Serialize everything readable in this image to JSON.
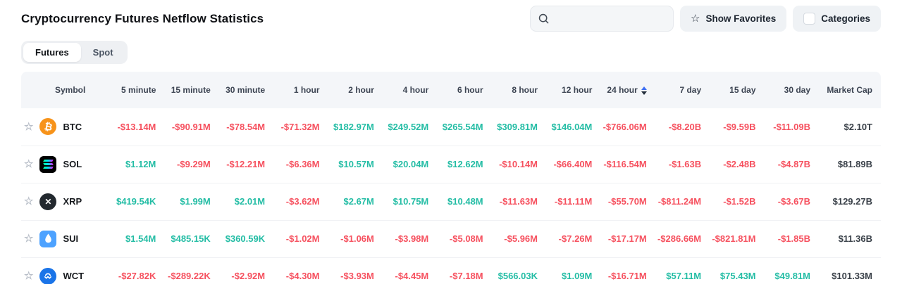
{
  "page": {
    "title": "Cryptocurrency Futures Netflow Statistics"
  },
  "controls": {
    "search_placeholder": "",
    "show_favorites_label": "Show Favorites",
    "categories_label": "Categories"
  },
  "tabs": [
    {
      "label": "Futures",
      "active": true
    },
    {
      "label": "Spot",
      "active": false
    }
  ],
  "colors": {
    "positive": "#24bda5",
    "negative": "#f6515f",
    "neutral": "#3a4149",
    "btc": "#f7931a",
    "sui": "#4da2ff",
    "wct": "#1a74e8",
    "xrp": "#23292f"
  },
  "table": {
    "columns": [
      "Symbol",
      "5 minute",
      "15 minute",
      "30 minute",
      "1 hour",
      "2 hour",
      "4 hour",
      "6 hour",
      "8 hour",
      "12 hour",
      "24 hour",
      "7 day",
      "15 day",
      "30 day",
      "Market Cap"
    ],
    "sorted_column": "24 hour",
    "rows": [
      {
        "symbol": "BTC",
        "icon": "btc",
        "values": [
          "-$13.14M",
          "-$90.91M",
          "-$78.54M",
          "-$71.32M",
          "$182.97M",
          "$249.52M",
          "$265.54M",
          "$309.81M",
          "$146.04M",
          "-$766.06M",
          "-$8.20B",
          "-$9.59B",
          "-$11.09B"
        ],
        "market_cap": "$2.10T"
      },
      {
        "symbol": "SOL",
        "icon": "sol",
        "values": [
          "$1.12M",
          "-$9.29M",
          "-$12.21M",
          "-$6.36M",
          "$10.57M",
          "$20.04M",
          "$12.62M",
          "-$10.14M",
          "-$66.40M",
          "-$116.54M",
          "-$1.63B",
          "-$2.48B",
          "-$4.87B"
        ],
        "market_cap": "$81.89B"
      },
      {
        "symbol": "XRP",
        "icon": "xrp",
        "values": [
          "$419.54K",
          "$1.99M",
          "$2.01M",
          "-$3.62M",
          "$2.67M",
          "$10.75M",
          "$10.48M",
          "-$11.63M",
          "-$11.11M",
          "-$55.70M",
          "-$811.24M",
          "-$1.52B",
          "-$3.67B"
        ],
        "market_cap": "$129.27B"
      },
      {
        "symbol": "SUI",
        "icon": "sui",
        "values": [
          "$1.54M",
          "$485.15K",
          "$360.59K",
          "-$1.02M",
          "-$1.06M",
          "-$3.98M",
          "-$5.08M",
          "-$5.96M",
          "-$7.26M",
          "-$17.17M",
          "-$286.66M",
          "-$821.81M",
          "-$1.85B"
        ],
        "market_cap": "$11.36B"
      },
      {
        "symbol": "WCT",
        "icon": "wct",
        "values": [
          "-$27.82K",
          "-$289.22K",
          "-$2.92M",
          "-$4.30M",
          "-$3.93M",
          "-$4.45M",
          "-$7.18M",
          "$566.03K",
          "$1.09M",
          "-$16.71M",
          "$57.11M",
          "$75.43M",
          "$49.81M"
        ],
        "market_cap": "$101.33M"
      }
    ]
  }
}
